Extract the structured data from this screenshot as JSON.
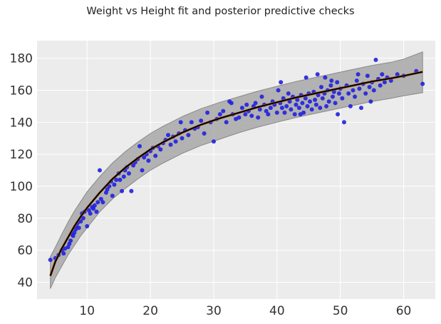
{
  "chart_data": {
    "type": "scatter",
    "title": "Weight vs Height fit and posterior predictive checks",
    "xlabel": "",
    "ylabel": "",
    "xlim": [
      2.1,
      65.0
    ],
    "ylim": [
      29.5,
      191.0
    ],
    "xticks": [
      "10",
      "20",
      "30",
      "40",
      "50",
      "60"
    ],
    "yticks": [
      "40",
      "60",
      "80",
      "100",
      "120",
      "140",
      "160",
      "180"
    ],
    "grid": true,
    "legend": "none",
    "colors": {
      "background": "#ececec",
      "grid": "#ffffff",
      "points": "#2020e0",
      "fit_line": "#000000",
      "band_fill": "#a8a8a8",
      "band_edge": "#888888"
    },
    "series": [
      {
        "type": "line",
        "x": [
          4.2,
          5,
          6,
          7,
          8,
          9,
          10,
          12,
          14,
          16,
          18,
          20,
          22,
          25,
          28,
          31,
          34,
          37,
          40,
          43,
          46,
          49,
          52,
          55,
          58,
          60,
          63
        ],
        "y": [
          44,
          53,
          61,
          68,
          75,
          81,
          86.5,
          96,
          104.5,
          111.5,
          117.5,
          123,
          127.5,
          133.5,
          138.5,
          142.5,
          146,
          149.5,
          152.5,
          155.5,
          158,
          160.5,
          163,
          165.5,
          167.5,
          169,
          171.5
        ]
      },
      {
        "type": "band",
        "x": [
          4.2,
          5,
          6,
          7,
          8,
          9,
          10,
          12,
          14,
          16,
          18,
          20,
          22,
          25,
          28,
          31,
          34,
          37,
          40,
          43,
          46,
          49,
          52,
          55,
          58,
          60,
          63
        ],
        "lower": [
          36,
          43,
          50,
          57,
          63,
          69,
          74,
          84,
          92,
          98.5,
          104.5,
          110,
          114.5,
          120.5,
          125.5,
          129.5,
          133.5,
          137,
          140,
          143,
          145.5,
          148,
          150.5,
          153,
          155,
          156.5,
          158.5
        ],
        "upper": [
          56,
          62,
          70,
          77.5,
          84.5,
          90.5,
          96.5,
          106,
          114.5,
          121.5,
          127.5,
          133,
          137.5,
          143.5,
          148.5,
          152.5,
          156,
          159.5,
          162.5,
          165.5,
          168,
          170.5,
          173,
          175.5,
          177.5,
          179.5,
          184
        ]
      },
      {
        "type": "scatter",
        "points": [
          [
            4.2,
            54
          ],
          [
            5,
            55
          ],
          [
            5.5,
            57
          ],
          [
            6,
            60
          ],
          [
            6.3,
            58
          ],
          [
            6.5,
            61
          ],
          [
            7,
            62
          ],
          [
            7.2,
            64
          ],
          [
            7.4,
            66
          ],
          [
            7.6,
            70
          ],
          [
            7.8,
            69
          ],
          [
            8,
            71
          ],
          [
            8.2,
            73
          ],
          [
            8.3,
            75
          ],
          [
            8.5,
            77
          ],
          [
            8.7,
            74
          ],
          [
            9,
            78
          ],
          [
            9.2,
            83
          ],
          [
            9.4,
            80
          ],
          [
            9.6,
            84
          ],
          [
            10,
            75
          ],
          [
            10.3,
            85
          ],
          [
            10.5,
            83
          ],
          [
            10.8,
            87
          ],
          [
            11,
            86
          ],
          [
            11.2,
            88
          ],
          [
            11.5,
            84
          ],
          [
            11.7,
            90
          ],
          [
            12,
            110
          ],
          [
            12.2,
            92
          ],
          [
            12.5,
            90
          ],
          [
            13,
            96
          ],
          [
            13.2,
            98
          ],
          [
            13.5,
            100
          ],
          [
            13.8,
            103
          ],
          [
            14,
            94
          ],
          [
            14.3,
            101
          ],
          [
            14.6,
            104
          ],
          [
            15,
            108
          ],
          [
            15.2,
            104
          ],
          [
            15.5,
            97
          ],
          [
            15.8,
            106
          ],
          [
            16,
            110
          ],
          [
            16.3,
            112
          ],
          [
            16.6,
            108
          ],
          [
            17,
            97
          ],
          [
            17.3,
            113
          ],
          [
            17.6,
            115
          ],
          [
            18,
            117
          ],
          [
            18.3,
            125
          ],
          [
            18.7,
            110
          ],
          [
            19,
            118
          ],
          [
            19.4,
            120
          ],
          [
            19.7,
            116
          ],
          [
            20,
            122
          ],
          [
            20.4,
            124
          ],
          [
            20.8,
            119
          ],
          [
            21.2,
            125
          ],
          [
            21.6,
            123
          ],
          [
            22,
            127
          ],
          [
            22.4,
            129
          ],
          [
            22.8,
            132
          ],
          [
            23.2,
            126
          ],
          [
            23.6,
            131
          ],
          [
            24,
            128
          ],
          [
            24.5,
            133
          ],
          [
            25,
            130
          ],
          [
            25.5,
            135
          ],
          [
            26,
            132
          ],
          [
            26.5,
            140
          ],
          [
            27,
            136
          ],
          [
            27.5,
            137
          ],
          [
            28,
            141
          ],
          [
            28.5,
            133
          ],
          [
            29,
            146
          ],
          [
            29.5,
            140
          ],
          [
            30,
            128
          ],
          [
            30.5,
            142
          ],
          [
            31,
            145
          ],
          [
            31.5,
            147
          ],
          [
            32,
            140
          ],
          [
            32.5,
            153
          ],
          [
            33,
            145
          ],
          [
            33.5,
            142
          ],
          [
            34,
            143
          ],
          [
            34.5,
            149
          ],
          [
            35,
            145
          ],
          [
            35.5,
            147
          ],
          [
            36,
            144
          ],
          [
            36.3,
            150
          ],
          [
            36.6,
            152
          ],
          [
            37,
            143
          ],
          [
            37.3,
            148
          ],
          [
            37.6,
            156
          ],
          [
            38,
            151
          ],
          [
            38.3,
            147
          ],
          [
            38.6,
            145
          ],
          [
            39,
            149
          ],
          [
            39.3,
            153
          ],
          [
            39.6,
            151
          ],
          [
            40,
            146
          ],
          [
            40.2,
            160
          ],
          [
            40.5,
            152
          ],
          [
            40.8,
            149
          ],
          [
            41,
            155
          ],
          [
            41.2,
            146
          ],
          [
            41.5,
            150
          ],
          [
            41.8,
            158
          ],
          [
            42,
            153
          ],
          [
            42.2,
            148
          ],
          [
            42.5,
            156
          ],
          [
            42.8,
            145
          ],
          [
            43,
            151
          ],
          [
            43.2,
            154
          ],
          [
            43.5,
            149
          ],
          [
            43.8,
            157
          ],
          [
            44,
            152
          ],
          [
            44.2,
            146
          ],
          [
            44.5,
            155
          ],
          [
            44.8,
            150
          ],
          [
            45,
            158
          ],
          [
            45.2,
            153
          ],
          [
            45.5,
            148
          ],
          [
            45.8,
            159
          ],
          [
            46,
            154
          ],
          [
            46.2,
            151
          ],
          [
            46.5,
            157
          ],
          [
            46.8,
            149
          ],
          [
            47,
            162
          ],
          [
            47.2,
            155
          ],
          [
            47.5,
            158
          ],
          [
            47.8,
            150
          ],
          [
            48,
            160
          ],
          [
            48.2,
            153
          ],
          [
            48.5,
            163
          ],
          [
            48.8,
            156
          ],
          [
            49,
            159
          ],
          [
            49.2,
            152
          ],
          [
            49.5,
            165
          ],
          [
            49.8,
            158
          ],
          [
            50,
            161
          ],
          [
            50.3,
            155
          ],
          [
            50.6,
            140
          ],
          [
            51,
            163
          ],
          [
            51.3,
            158
          ],
          [
            51.6,
            150
          ],
          [
            52,
            160
          ],
          [
            52.3,
            156
          ],
          [
            52.6,
            166
          ],
          [
            53,
            161
          ],
          [
            53.3,
            149
          ],
          [
            53.6,
            164
          ],
          [
            54,
            158
          ],
          [
            54.3,
            169
          ],
          [
            54.6,
            162
          ],
          [
            55,
            165
          ],
          [
            55.3,
            160
          ],
          [
            55.6,
            179
          ],
          [
            56,
            167
          ],
          [
            56.3,
            163
          ],
          [
            56.6,
            170
          ],
          [
            57,
            165
          ],
          [
            57.4,
            168
          ],
          [
            58,
            166
          ],
          [
            59,
            170
          ],
          [
            60,
            169
          ],
          [
            62,
            172
          ],
          [
            63,
            164
          ],
          [
            24.8,
            140
          ],
          [
            32.8,
            152
          ],
          [
            35.2,
            151
          ],
          [
            40.6,
            165
          ],
          [
            43.7,
            145
          ],
          [
            46.4,
            170
          ],
          [
            44.6,
            168
          ],
          [
            47.6,
            168
          ],
          [
            49.6,
            145
          ],
          [
            52.8,
            170
          ],
          [
            54.8,
            153
          ],
          [
            48.6,
            166
          ]
        ]
      }
    ]
  }
}
